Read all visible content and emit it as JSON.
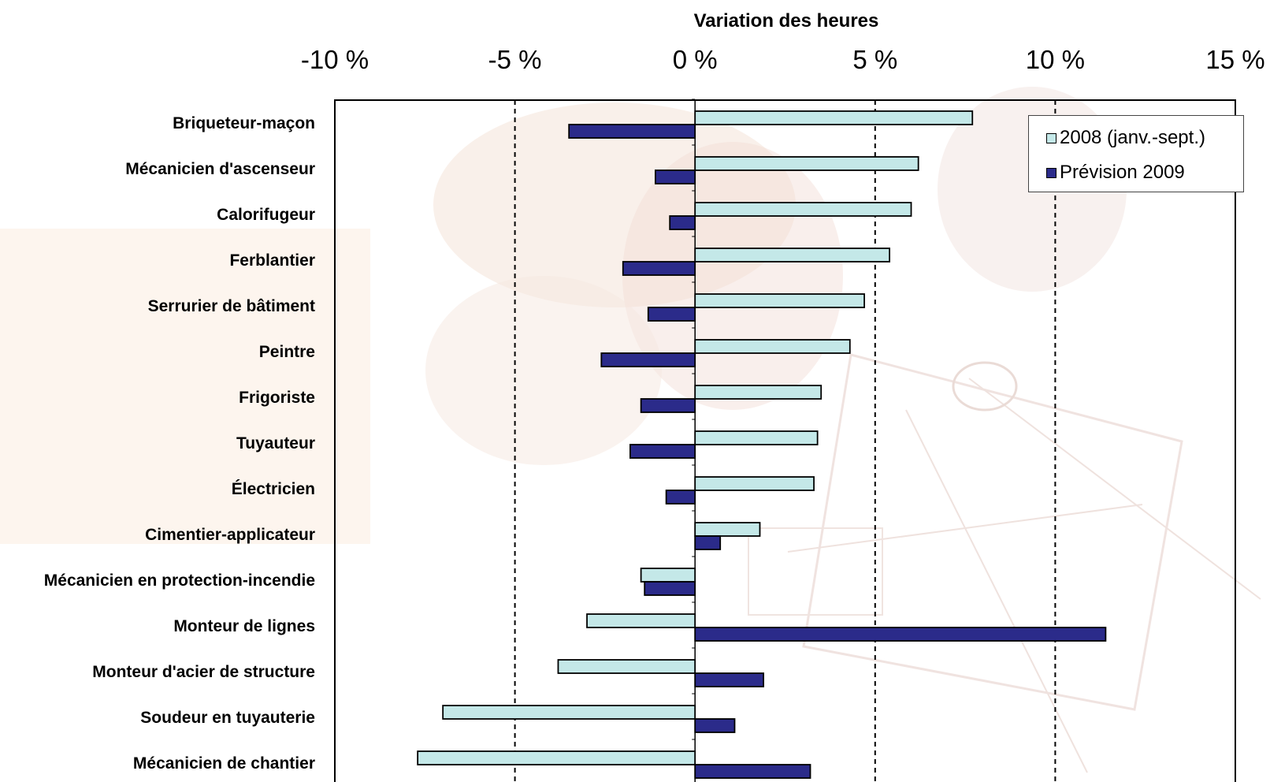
{
  "chart_data": {
    "type": "bar",
    "orientation": "horizontal",
    "title": "Variation des heures",
    "categories": [
      "Briqueteur-maçon",
      "Mécanicien d'ascenseur",
      "Calorifugeur",
      "Ferblantier",
      "Serrurier de bâtiment",
      "Peintre",
      "Frigoriste",
      "Tuyauteur",
      "Électricien",
      "Cimentier-applicateur",
      "Mécanicien en protection-incendie",
      "Monteur de lignes",
      "Monteur d'acier de structure",
      "Soudeur en tuyauterie",
      "Mécanicien de chantier"
    ],
    "series": [
      {
        "name": "2008 (janv.-sept.)",
        "color": "#c4e8e8",
        "values": [
          7.7,
          6.2,
          6.0,
          5.4,
          4.7,
          4.3,
          3.5,
          3.4,
          3.3,
          1.8,
          -1.5,
          -3.0,
          -3.8,
          -7.0,
          -7.7
        ]
      },
      {
        "name": "Prévision 2009",
        "color": "#2b2b8a",
        "values": [
          -3.5,
          -1.1,
          -0.7,
          -2.0,
          -1.3,
          -2.6,
          -1.5,
          -1.8,
          -0.8,
          0.7,
          -1.4,
          11.4,
          1.9,
          1.1,
          3.2
        ]
      }
    ],
    "xlim": [
      -10,
      15
    ],
    "xticks": [
      -10,
      -5,
      0,
      5,
      10,
      15
    ],
    "tick_labels": [
      "-10 %",
      "-5 %",
      "0 %",
      "5 %",
      "10 %",
      "15 %"
    ],
    "gridlines": "vertical dashed at -5, 5, 10",
    "legend_position": "top-right"
  }
}
